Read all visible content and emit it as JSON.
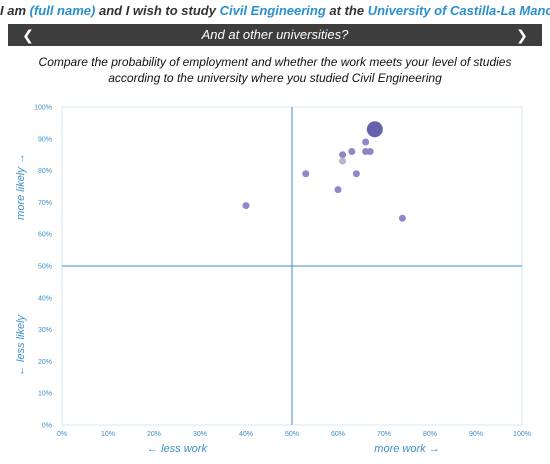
{
  "header": {
    "part1": "I am ",
    "full_name": "(full name)",
    "part2": " and I wish to study ",
    "degree": "Civil Engineering",
    "part3": " at the ",
    "university": "University of Castilla-La Mancha"
  },
  "nav": {
    "prev_icon": "chevron-left-icon",
    "next_icon": "chevron-right-icon",
    "title": "And at other universities?"
  },
  "subtitle": {
    "line1": "Compare the probability of employment and whether the work meets your level of studies",
    "line2": "according to the university where you studied Civil Engineering"
  },
  "colors": {
    "point": "#8583c4",
    "point_highlight": "#5c5aa8",
    "point_light": "#b7aecd",
    "axis": "#3c8fc8",
    "grid": "#d4e6f4",
    "navbar": "#3d3d3d"
  },
  "chart_data": {
    "type": "scatter",
    "xlim": [
      0,
      100
    ],
    "ylim": [
      0,
      100
    ],
    "x_ticks": [
      "0%",
      "10%",
      "20%",
      "30%",
      "40%",
      "50%",
      "60%",
      "70%",
      "80%",
      "90%",
      "100%"
    ],
    "y_ticks": [
      "0%",
      "10%",
      "20%",
      "30%",
      "40%",
      "50%",
      "60%",
      "70%",
      "80%",
      "90%",
      "100%"
    ],
    "x_left_label": "← less work",
    "x_right_label": "more work →",
    "y_top_label": "more likely →",
    "y_bottom_label": "← less likely",
    "grid": false,
    "quadrant_lines": {
      "x": 50,
      "y": 50
    },
    "points": [
      {
        "x": 68,
        "y": 93,
        "size": "large",
        "highlight": true
      },
      {
        "x": 66,
        "y": 89,
        "size": "small"
      },
      {
        "x": 63,
        "y": 86,
        "size": "small"
      },
      {
        "x": 66,
        "y": 86,
        "size": "small"
      },
      {
        "x": 67,
        "y": 86,
        "size": "small"
      },
      {
        "x": 61,
        "y": 85,
        "size": "small"
      },
      {
        "x": 61,
        "y": 83,
        "size": "small",
        "light": true
      },
      {
        "x": 53,
        "y": 79,
        "size": "small"
      },
      {
        "x": 64,
        "y": 79,
        "size": "small"
      },
      {
        "x": 60,
        "y": 74,
        "size": "small"
      },
      {
        "x": 40,
        "y": 69,
        "size": "small"
      },
      {
        "x": 74,
        "y": 65,
        "size": "small"
      }
    ]
  }
}
